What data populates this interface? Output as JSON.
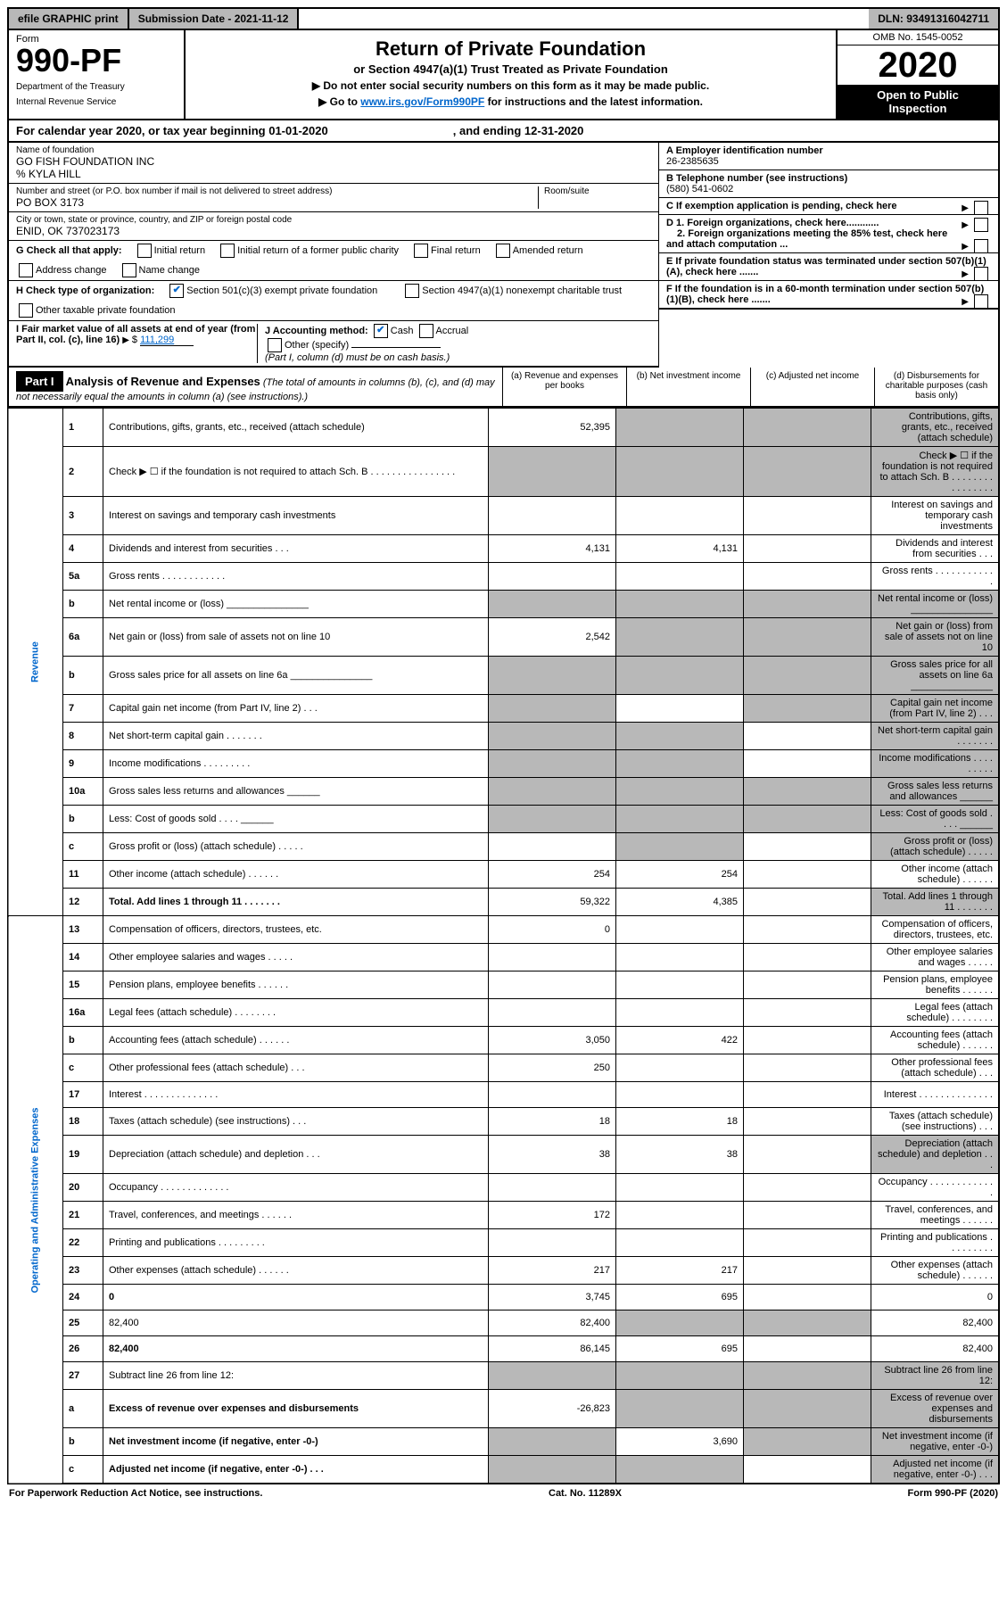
{
  "topbar": {
    "efile": "efile GRAPHIC print",
    "submission": "Submission Date - 2021-11-12",
    "dln": "DLN: 93491316042711"
  },
  "header": {
    "form_label": "Form",
    "form_number": "990-PF",
    "dept1": "Department of the Treasury",
    "dept2": "Internal Revenue Service",
    "title": "Return of Private Foundation",
    "subtitle": "or Section 4947(a)(1) Trust Treated as Private Foundation",
    "note1": "▶ Do not enter social security numbers on this form as it may be made public.",
    "note2_prefix": "▶ Go to ",
    "note2_link": "www.irs.gov/Form990PF",
    "note2_suffix": " for instructions and the latest information.",
    "omb": "OMB No. 1545-0052",
    "year": "2020",
    "inspect1": "Open to Public",
    "inspect2": "Inspection"
  },
  "calendar": {
    "prefix": "For calendar year 2020, or tax year beginning 01-01-2020",
    "suffix": ", and ending 12-31-2020"
  },
  "info": {
    "name_label": "Name of foundation",
    "name": "GO FISH FOUNDATION INC",
    "care_of": "% KYLA HILL",
    "addr_label": "Number and street (or P.O. box number if mail is not delivered to street address)",
    "addr": "PO BOX 3173",
    "room_label": "Room/suite",
    "city_label": "City or town, state or province, country, and ZIP or foreign postal code",
    "city": "ENID, OK 737023173",
    "g_label": "G Check all that apply:",
    "g_opts": [
      "Initial return",
      "Initial return of a former public charity",
      "Final return",
      "Amended return",
      "Address change",
      "Name change"
    ],
    "h_label": "H Check type of organization:",
    "h_opt1": "Section 501(c)(3) exempt private foundation",
    "h_opt2": "Section 4947(a)(1) nonexempt charitable trust",
    "h_opt3": "Other taxable private foundation",
    "i_label": "I Fair market value of all assets at end of year (from Part II, col. (c), line 16)",
    "i_value": "111,299",
    "j_label": "J Accounting method:",
    "j_cash": "Cash",
    "j_accrual": "Accrual",
    "j_other": "Other (specify)",
    "j_note": "(Part I, column (d) must be on cash basis.)",
    "a_label": "A Employer identification number",
    "a_value": "26-2385635",
    "b_label": "B Telephone number (see instructions)",
    "b_value": "(580) 541-0602",
    "c_label": "C If exemption application is pending, check here",
    "d1_label": "D 1. Foreign organizations, check here............",
    "d2_label": "2. Foreign organizations meeting the 85% test, check here and attach computation ...",
    "e_label": "E If private foundation status was terminated under section 507(b)(1)(A), check here .......",
    "f_label": "F If the foundation is in a 60-month termination under section 507(b)(1)(B), check here ......."
  },
  "part1": {
    "label": "Part I",
    "title": "Analysis of Revenue and Expenses",
    "note": "(The total of amounts in columns (b), (c), and (d) may not necessarily equal the amounts in column (a) (see instructions).)",
    "col_a": "(a) Revenue and expenses per books",
    "col_b": "(b) Net investment income",
    "col_c": "(c) Adjusted net income",
    "col_d": "(d) Disbursements for charitable purposes (cash basis only)"
  },
  "sections": {
    "revenue": "Revenue",
    "expenses": "Operating and Administrative Expenses"
  },
  "rows": [
    {
      "n": "1",
      "d": "Contributions, gifts, grants, etc., received (attach schedule)",
      "a": "52,395",
      "shade_b": true,
      "shade_c": true,
      "shade_d": true
    },
    {
      "n": "2",
      "d": "Check ▶ ☐ if the foundation is not required to attach Sch. B   .  .  .  .  .  .  .  .  .  .  .  .  .  .  .  .",
      "shade_a": true,
      "shade_b": true,
      "shade_c": true,
      "shade_d": true
    },
    {
      "n": "3",
      "d": "Interest on savings and temporary cash investments"
    },
    {
      "n": "4",
      "d": "Dividends and interest from securities   .   .   .",
      "a": "4,131",
      "b": "4,131"
    },
    {
      "n": "5a",
      "d": "Gross rents   .   .   .   .   .   .   .   .   .   .   .   ."
    },
    {
      "n": "b",
      "d": "Net rental income or (loss) _______________",
      "shade_a": true,
      "shade_b": true,
      "shade_c": true,
      "shade_d": true
    },
    {
      "n": "6a",
      "d": "Net gain or (loss) from sale of assets not on line 10",
      "a": "2,542",
      "shade_b": true,
      "shade_c": true,
      "shade_d": true
    },
    {
      "n": "b",
      "d": "Gross sales price for all assets on line 6a _______________",
      "shade_a": true,
      "shade_b": true,
      "shade_c": true,
      "shade_d": true
    },
    {
      "n": "7",
      "d": "Capital gain net income (from Part IV, line 2)   .   .   .",
      "shade_a": true,
      "shade_c": true,
      "shade_d": true
    },
    {
      "n": "8",
      "d": "Net short-term capital gain   .   .   .   .   .   .   .",
      "shade_a": true,
      "shade_b": true,
      "shade_d": true
    },
    {
      "n": "9",
      "d": "Income modifications   .   .   .   .   .   .   .   .   .",
      "shade_a": true,
      "shade_b": true,
      "shade_d": true
    },
    {
      "n": "10a",
      "d": "Gross sales less returns and allowances ______",
      "shade_a": true,
      "shade_b": true,
      "shade_c": true,
      "shade_d": true
    },
    {
      "n": "b",
      "d": "Less: Cost of goods sold   .   .   .   . ______",
      "shade_a": true,
      "shade_b": true,
      "shade_c": true,
      "shade_d": true
    },
    {
      "n": "c",
      "d": "Gross profit or (loss) (attach schedule)   .   .   .   .   .",
      "shade_b": true,
      "shade_d": true
    },
    {
      "n": "11",
      "d": "Other income (attach schedule)   .   .   .   .   .   .",
      "a": "254",
      "b": "254"
    },
    {
      "n": "12",
      "d": "Total. Add lines 1 through 11   .   .   .   .   .   .   .",
      "a": "59,322",
      "b": "4,385",
      "bold": true,
      "shade_d": true
    }
  ],
  "exp_rows": [
    {
      "n": "13",
      "d": "Compensation of officers, directors, trustees, etc.",
      "a": "0"
    },
    {
      "n": "14",
      "d": "Other employee salaries and wages   .   .   .   .   ."
    },
    {
      "n": "15",
      "d": "Pension plans, employee benefits   .   .   .   .   .   ."
    },
    {
      "n": "16a",
      "d": "Legal fees (attach schedule)   .   .   .   .   .   .   .   ."
    },
    {
      "n": "b",
      "d": "Accounting fees (attach schedule)   .   .   .   .   .   .",
      "a": "3,050",
      "b": "422"
    },
    {
      "n": "c",
      "d": "Other professional fees (attach schedule)   .   .   .",
      "a": "250"
    },
    {
      "n": "17",
      "d": "Interest   .   .   .   .   .   .   .   .   .   .   .   .   .   ."
    },
    {
      "n": "18",
      "d": "Taxes (attach schedule) (see instructions)   .   .   .",
      "a": "18",
      "b": "18"
    },
    {
      "n": "19",
      "d": "Depreciation (attach schedule) and depletion   .   .   .",
      "a": "38",
      "b": "38",
      "shade_d": true
    },
    {
      "n": "20",
      "d": "Occupancy   .   .   .   .   .   .   .   .   .   .   .   .   ."
    },
    {
      "n": "21",
      "d": "Travel, conferences, and meetings   .   .   .   .   .   .",
      "a": "172"
    },
    {
      "n": "22",
      "d": "Printing and publications   .   .   .   .   .   .   .   .   ."
    },
    {
      "n": "23",
      "d": "Other expenses (attach schedule)   .   .   .   .   .   .",
      "a": "217",
      "b": "217"
    },
    {
      "n": "24",
      "d": "0",
      "a": "3,745",
      "b": "695",
      "bold": true
    },
    {
      "n": "25",
      "d": "82,400",
      "a": "82,400",
      "shade_b": true,
      "shade_c": true
    },
    {
      "n": "26",
      "d": "82,400",
      "a": "86,145",
      "b": "695",
      "bold": true
    },
    {
      "n": "27",
      "d": "Subtract line 26 from line 12:",
      "shade_a": true,
      "shade_b": true,
      "shade_c": true,
      "shade_d": true
    },
    {
      "n": "a",
      "d": "Excess of revenue over expenses and disbursements",
      "a": "-26,823",
      "shade_b": true,
      "shade_c": true,
      "shade_d": true,
      "bold": true
    },
    {
      "n": "b",
      "d": "Net investment income (if negative, enter -0-)",
      "shade_a": true,
      "b": "3,690",
      "shade_c": true,
      "shade_d": true,
      "bold": true
    },
    {
      "n": "c",
      "d": "Adjusted net income (if negative, enter -0-)   .   .   .",
      "shade_a": true,
      "shade_b": true,
      "shade_d": true,
      "bold": true
    }
  ],
  "footer": {
    "left": "For Paperwork Reduction Act Notice, see instructions.",
    "center": "Cat. No. 11289X",
    "right": "Form 990-PF (2020)"
  }
}
